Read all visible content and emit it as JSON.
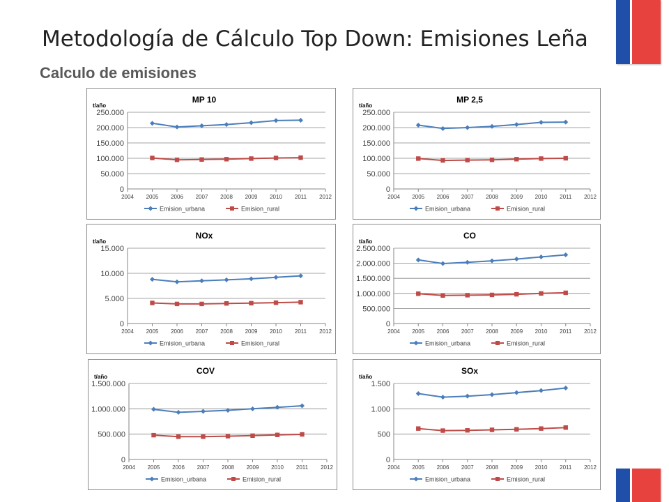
{
  "header": {
    "title": "Metodología de Cálculo Top Down: Emisiones Leña",
    "subtitle": "Calculo de emisiones"
  },
  "colors": {
    "urbana": "#4a7ebb",
    "rural": "#be4b48",
    "flag_blue": "#1f4fa8",
    "flag_red": "#e8423f"
  },
  "chart_data": [
    {
      "type": "line",
      "title": "MP 10",
      "ylabel": "t/año",
      "xlim": [
        2004,
        2012
      ],
      "ylim": [
        0,
        250000
      ],
      "x_ticks": [
        2004,
        2005,
        2006,
        2007,
        2008,
        2009,
        2010,
        2011,
        2012
      ],
      "y_ticks": [
        0,
        50000,
        100000,
        150000,
        200000,
        250000
      ],
      "y_tick_labels": [
        "0",
        "50.000",
        "100.000",
        "150.000",
        "200.000",
        "250.000"
      ],
      "grid": true,
      "legend": "bottom",
      "x": [
        2005,
        2006,
        2007,
        2008,
        2009,
        2010,
        2011
      ],
      "series": [
        {
          "name": "Emision_urbana",
          "values": [
            214000,
            202000,
            206000,
            210000,
            216000,
            223000,
            224000
          ]
        },
        {
          "name": "Emision_rural",
          "values": [
            101000,
            95000,
            96000,
            97000,
            99000,
            101000,
            102000
          ]
        }
      ]
    },
    {
      "type": "line",
      "title": "MP 2,5",
      "ylabel": "t/año",
      "xlim": [
        2004,
        2012
      ],
      "ylim": [
        0,
        250000
      ],
      "x_ticks": [
        2004,
        2005,
        2006,
        2007,
        2008,
        2009,
        2010,
        2011,
        2012
      ],
      "y_ticks": [
        0,
        50000,
        100000,
        150000,
        200000,
        250000
      ],
      "y_tick_labels": [
        "0",
        "50.000",
        "100.000",
        "150.000",
        "200.000",
        "250.000"
      ],
      "grid": true,
      "legend": "bottom",
      "x": [
        2005,
        2006,
        2007,
        2008,
        2009,
        2010,
        2011
      ],
      "series": [
        {
          "name": "Emision_urbana",
          "values": [
            208000,
            197000,
            200000,
            204000,
            210000,
            217000,
            218000
          ]
        },
        {
          "name": "Emision_rural",
          "values": [
            99000,
            93000,
            94000,
            95000,
            97000,
            99000,
            100000
          ]
        }
      ]
    },
    {
      "type": "line",
      "title": "NOx",
      "ylabel": "t/año",
      "xlim": [
        2004,
        2012
      ],
      "ylim": [
        0,
        15000
      ],
      "x_ticks": [
        2004,
        2005,
        2006,
        2007,
        2008,
        2009,
        2010,
        2011,
        2012
      ],
      "y_ticks": [
        0,
        5000,
        10000,
        15000
      ],
      "y_tick_labels": [
        "0",
        "5.000",
        "10.000",
        "15.000"
      ],
      "grid": true,
      "legend": "bottom",
      "x": [
        2005,
        2006,
        2007,
        2008,
        2009,
        2010,
        2011
      ],
      "series": [
        {
          "name": "Emision_urbana",
          "values": [
            8800,
            8300,
            8500,
            8700,
            8900,
            9200,
            9500
          ]
        },
        {
          "name": "Emision_rural",
          "values": [
            4100,
            3900,
            3900,
            4000,
            4050,
            4150,
            4250
          ]
        }
      ]
    },
    {
      "type": "line",
      "title": "CO",
      "ylabel": "t/año",
      "xlim": [
        2004,
        2012
      ],
      "ylim": [
        0,
        2500000
      ],
      "x_ticks": [
        2004,
        2005,
        2006,
        2007,
        2008,
        2009,
        2010,
        2011,
        2012
      ],
      "y_ticks": [
        0,
        500000,
        1000000,
        1500000,
        2000000,
        2500000
      ],
      "y_tick_labels": [
        "0",
        "500.000",
        "1.000.000",
        "1.500.000",
        "2.000.000",
        "2.500.000"
      ],
      "grid": true,
      "legend": "bottom",
      "x": [
        2005,
        2006,
        2007,
        2008,
        2009,
        2010,
        2011
      ],
      "series": [
        {
          "name": "Emision_urbana",
          "values": [
            2110000,
            1990000,
            2030000,
            2080000,
            2140000,
            2210000,
            2280000
          ]
        },
        {
          "name": "Emision_rural",
          "values": [
            990000,
            930000,
            940000,
            950000,
            970000,
            1000000,
            1020000
          ]
        }
      ]
    },
    {
      "type": "line",
      "title": "COV",
      "ylabel": "t/año",
      "xlim": [
        2004,
        2012
      ],
      "ylim": [
        0,
        1500000
      ],
      "x_ticks": [
        2004,
        2005,
        2006,
        2007,
        2008,
        2009,
        2010,
        2011,
        2012
      ],
      "y_ticks": [
        0,
        500000,
        1000000,
        1500000
      ],
      "y_tick_labels": [
        "0",
        "500.000",
        "1.000.000",
        "1.500.000"
      ],
      "grid": true,
      "legend": "bottom",
      "x": [
        2005,
        2006,
        2007,
        2008,
        2009,
        2010,
        2011
      ],
      "series": [
        {
          "name": "Emision_urbana",
          "values": [
            990000,
            930000,
            950000,
            970000,
            1000000,
            1030000,
            1060000
          ]
        },
        {
          "name": "Emision_rural",
          "values": [
            480000,
            450000,
            450000,
            460000,
            470000,
            485000,
            495000
          ]
        }
      ]
    },
    {
      "type": "line",
      "title": "SOx",
      "ylabel": "t/año",
      "xlim": [
        2004,
        2012
      ],
      "ylim": [
        0,
        1500
      ],
      "x_ticks": [
        2004,
        2005,
        2006,
        2007,
        2008,
        2009,
        2010,
        2011,
        2012
      ],
      "y_ticks": [
        0,
        500,
        1000,
        1500
      ],
      "y_tick_labels": [
        "0",
        "500",
        "1.000",
        "1.500"
      ],
      "grid": true,
      "legend": "bottom",
      "x": [
        2005,
        2006,
        2007,
        2008,
        2009,
        2010,
        2011
      ],
      "series": [
        {
          "name": "Emision_urbana",
          "values": [
            1300,
            1230,
            1250,
            1280,
            1320,
            1360,
            1410
          ]
        },
        {
          "name": "Emision_rural",
          "values": [
            610,
            570,
            575,
            585,
            595,
            610,
            630
          ]
        }
      ]
    }
  ]
}
